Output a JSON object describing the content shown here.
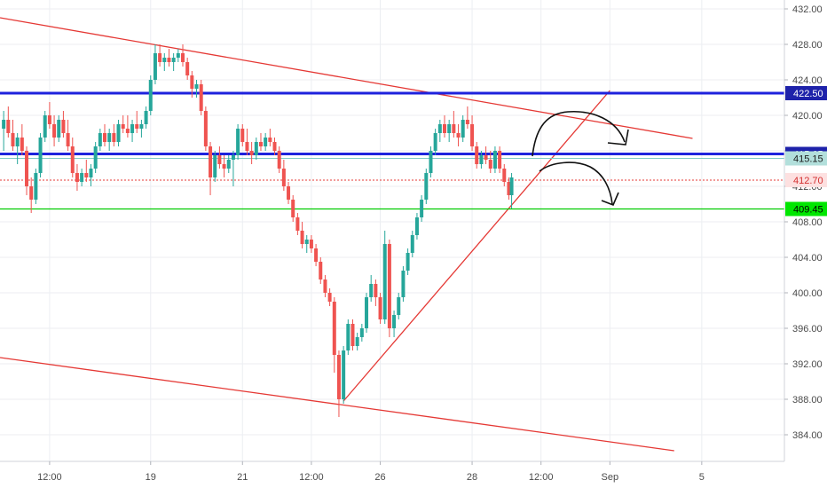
{
  "chart_data": {
    "type": "candlestick",
    "ylim": [
      381,
      433
    ],
    "y_ticks": [
      "432.00",
      "428.00",
      "424.00",
      "420.00",
      "416.00",
      "412.00",
      "408.00",
      "404.00",
      "400.00",
      "396.00",
      "392.00",
      "388.00",
      "384.00"
    ],
    "x_ticks": [
      {
        "label": "12:00",
        "t": 0.9
      },
      {
        "label": "19",
        "t": 2.0
      },
      {
        "label": "21",
        "t": 3.0
      },
      {
        "label": "12:00",
        "t": 3.75
      },
      {
        "label": "26",
        "t": 4.5
      },
      {
        "label": "28",
        "t": 5.5
      },
      {
        "label": "12:00",
        "t": 6.25
      },
      {
        "label": "Sep",
        "t": 7.0
      },
      {
        "label": "5",
        "t": 8.0
      }
    ],
    "x_range": [
      0.36,
      8.9
    ],
    "series_colors": {
      "up": "#26a69a",
      "down": "#ef5350"
    },
    "candles": [
      [
        0.4,
        418.5,
        420.5,
        416.0,
        419.5
      ],
      [
        0.45,
        419.5,
        421.0,
        417.5,
        418.0
      ],
      [
        0.5,
        418.0,
        419.5,
        416.0,
        416.5
      ],
      [
        0.55,
        416.5,
        418.0,
        414.5,
        417.5
      ],
      [
        0.6,
        417.5,
        419.0,
        415.5,
        416.0
      ],
      [
        0.65,
        416.0,
        416.5,
        411.0,
        412.0
      ],
      [
        0.7,
        412.0,
        413.0,
        409.0,
        410.5
      ],
      [
        0.75,
        410.5,
        414.0,
        410.0,
        413.5
      ],
      [
        0.8,
        413.5,
        418.0,
        413.0,
        417.5
      ],
      [
        0.85,
        417.5,
        420.5,
        417.0,
        420.0
      ],
      [
        0.9,
        420.0,
        421.5,
        418.5,
        419.0
      ],
      [
        0.95,
        419.0,
        420.0,
        416.5,
        417.5
      ],
      [
        1.0,
        417.5,
        420.0,
        417.0,
        419.5
      ],
      [
        1.05,
        419.5,
        420.5,
        417.5,
        418.0
      ],
      [
        1.1,
        418.0,
        419.5,
        416.0,
        416.5
      ],
      [
        1.15,
        416.5,
        417.5,
        413.0,
        413.5
      ],
      [
        1.2,
        413.5,
        414.5,
        411.5,
        412.5
      ],
      [
        1.25,
        412.5,
        414.0,
        412.0,
        413.5
      ],
      [
        1.3,
        413.5,
        415.0,
        412.5,
        413.0
      ],
      [
        1.35,
        413.0,
        414.5,
        412.0,
        414.0
      ],
      [
        1.4,
        414.0,
        417.0,
        413.5,
        416.5
      ],
      [
        1.45,
        416.5,
        418.5,
        416.0,
        418.0
      ],
      [
        1.5,
        418.0,
        419.0,
        416.5,
        417.0
      ],
      [
        1.55,
        417.0,
        418.5,
        416.0,
        418.0
      ],
      [
        1.6,
        418.0,
        419.0,
        416.5,
        417.0
      ],
      [
        1.65,
        417.0,
        419.5,
        416.5,
        419.0
      ],
      [
        1.7,
        419.0,
        420.0,
        418.0,
        418.5
      ],
      [
        1.75,
        418.5,
        420.0,
        417.5,
        418.0
      ],
      [
        1.8,
        418.0,
        419.5,
        417.0,
        419.0
      ],
      [
        1.85,
        419.0,
        420.5,
        418.0,
        418.5
      ],
      [
        1.9,
        418.5,
        419.5,
        417.5,
        419.0
      ],
      [
        1.95,
        419.0,
        421.0,
        418.5,
        420.5
      ],
      [
        2.0,
        420.5,
        424.5,
        420.0,
        424.0
      ],
      [
        2.05,
        424.0,
        428.0,
        423.5,
        427.0
      ],
      [
        2.1,
        427.0,
        428.0,
        425.5,
        426.0
      ],
      [
        2.15,
        426.0,
        427.0,
        425.0,
        426.5
      ],
      [
        2.2,
        426.5,
        427.5,
        425.5,
        426.0
      ],
      [
        2.25,
        426.0,
        427.0,
        425.0,
        426.5
      ],
      [
        2.3,
        426.5,
        427.5,
        426.0,
        427.0
      ],
      [
        2.35,
        427.0,
        428.0,
        425.5,
        426.0
      ],
      [
        2.4,
        426.0,
        426.5,
        424.0,
        424.5
      ],
      [
        2.45,
        424.5,
        425.0,
        422.0,
        423.0
      ],
      [
        2.5,
        423.0,
        424.0,
        422.0,
        423.5
      ],
      [
        2.55,
        423.5,
        424.0,
        420.0,
        420.5
      ],
      [
        2.6,
        420.5,
        421.0,
        416.0,
        416.5
      ],
      [
        2.65,
        416.5,
        417.0,
        411.0,
        413.0
      ],
      [
        2.7,
        413.0,
        416.0,
        412.5,
        415.5
      ],
      [
        2.75,
        415.5,
        416.5,
        414.0,
        414.5
      ],
      [
        2.8,
        414.5,
        415.5,
        413.0,
        414.0
      ],
      [
        2.85,
        414.0,
        415.5,
        413.5,
        415.0
      ],
      [
        2.9,
        415.0,
        416.0,
        412.0,
        415.5
      ],
      [
        2.95,
        415.5,
        419.0,
        415.0,
        418.5
      ],
      [
        3.0,
        418.5,
        419.0,
        416.5,
        417.0
      ],
      [
        3.05,
        417.0,
        418.5,
        415.5,
        416.0
      ],
      [
        3.1,
        416.0,
        417.0,
        414.5,
        415.5
      ],
      [
        3.15,
        415.5,
        417.5,
        415.0,
        417.0
      ],
      [
        3.2,
        417.0,
        418.0,
        416.0,
        416.5
      ],
      [
        3.25,
        416.5,
        418.0,
        416.0,
        417.5
      ],
      [
        3.3,
        417.5,
        418.5,
        416.5,
        417.0
      ],
      [
        3.35,
        417.0,
        417.5,
        415.5,
        416.0
      ],
      [
        3.4,
        416.0,
        416.5,
        413.5,
        414.0
      ],
      [
        3.45,
        414.0,
        415.0,
        411.5,
        412.0
      ],
      [
        3.5,
        412.0,
        412.5,
        410.0,
        410.5
      ],
      [
        3.55,
        410.5,
        411.0,
        408.0,
        408.5
      ],
      [
        3.6,
        408.5,
        409.0,
        406.5,
        407.0
      ],
      [
        3.65,
        407.0,
        408.0,
        405.0,
        405.5
      ],
      [
        3.7,
        405.5,
        406.5,
        404.5,
        406.0
      ],
      [
        3.75,
        406.0,
        406.5,
        404.5,
        405.0
      ],
      [
        3.8,
        405.0,
        405.5,
        403.0,
        403.5
      ],
      [
        3.85,
        403.5,
        404.0,
        401.0,
        401.5
      ],
      [
        3.9,
        401.5,
        402.0,
        399.5,
        400.0
      ],
      [
        3.95,
        400.0,
        400.5,
        398.5,
        399.0
      ],
      [
        4.0,
        399.0,
        399.5,
        391.0,
        393.0
      ],
      [
        4.05,
        393.0,
        393.5,
        386.0,
        388.0
      ],
      [
        4.1,
        388.0,
        394.0,
        387.5,
        393.5
      ],
      [
        4.15,
        393.5,
        397.0,
        393.0,
        396.5
      ],
      [
        4.2,
        396.5,
        397.0,
        393.5,
        394.0
      ],
      [
        4.25,
        394.0,
        395.5,
        393.5,
        395.0
      ],
      [
        4.3,
        395.0,
        396.5,
        394.5,
        396.0
      ],
      [
        4.35,
        396.0,
        400.0,
        395.5,
        399.5
      ],
      [
        4.4,
        399.5,
        402.0,
        399.0,
        401.0
      ],
      [
        4.45,
        401.0,
        401.5,
        398.5,
        399.5
      ],
      [
        4.5,
        399.5,
        400.0,
        396.5,
        397.0
      ],
      [
        4.55,
        397.0,
        407.0,
        396.5,
        405.5
      ],
      [
        4.6,
        405.5,
        406.0,
        395.0,
        396.0
      ],
      [
        4.65,
        396.0,
        398.0,
        395.0,
        397.5
      ],
      [
        4.7,
        397.5,
        400.0,
        397.0,
        399.5
      ],
      [
        4.75,
        399.5,
        403.0,
        399.0,
        402.5
      ],
      [
        4.8,
        402.5,
        405.0,
        402.0,
        404.5
      ],
      [
        4.85,
        404.5,
        407.0,
        404.0,
        406.5
      ],
      [
        4.9,
        406.5,
        409.0,
        406.0,
        408.5
      ],
      [
        4.95,
        408.5,
        411.0,
        408.0,
        410.5
      ],
      [
        5.0,
        410.5,
        414.0,
        410.0,
        413.5
      ],
      [
        5.05,
        413.5,
        416.5,
        413.0,
        416.0
      ],
      [
        5.1,
        416.0,
        418.5,
        415.5,
        418.0
      ],
      [
        5.15,
        418.0,
        419.5,
        417.0,
        419.0
      ],
      [
        5.2,
        419.0,
        420.0,
        417.5,
        418.0
      ],
      [
        5.25,
        418.0,
        419.5,
        417.0,
        419.0
      ],
      [
        5.3,
        419.0,
        420.5,
        417.5,
        418.0
      ],
      [
        5.35,
        418.0,
        419.0,
        416.5,
        417.5
      ],
      [
        5.4,
        417.5,
        420.0,
        417.0,
        419.5
      ],
      [
        5.45,
        419.5,
        421.0,
        418.5,
        419.0
      ],
      [
        5.5,
        419.0,
        420.0,
        416.0,
        416.5
      ],
      [
        5.55,
        416.5,
        417.0,
        414.0,
        414.5
      ],
      [
        5.6,
        414.5,
        416.0,
        414.0,
        415.5
      ],
      [
        5.65,
        415.5,
        416.5,
        414.5,
        415.0
      ],
      [
        5.7,
        415.0,
        416.0,
        413.5,
        414.0
      ],
      [
        5.75,
        414.0,
        416.5,
        413.5,
        416.0
      ],
      [
        5.8,
        416.0,
        416.5,
        413.5,
        414.0
      ],
      [
        5.85,
        414.0,
        414.5,
        412.0,
        412.5
      ],
      [
        5.9,
        412.5,
        413.0,
        410.5,
        411.0
      ],
      [
        5.93,
        411.0,
        413.5,
        409.5,
        413.0
      ]
    ],
    "price_tags": [
      {
        "label": "422.50",
        "value": 422.5,
        "bg": "#1e22aa",
        "fg": "#ffffff"
      },
      {
        "label": "415.65",
        "value": 415.65,
        "bg": "#1e22aa",
        "fg": "#ffffff"
      },
      {
        "label": "415.15",
        "value": 415.15,
        "bg": "#b2dfdb",
        "fg": "#1a1a1a"
      },
      {
        "label": "412.70",
        "value": 412.7,
        "bg": "#fde0e0",
        "fg": "#d32f2f"
      },
      {
        "label": "409.45",
        "value": 409.45,
        "bg": "#00e600",
        "fg": "#000000"
      }
    ],
    "horizontal_lines": [
      {
        "value": 422.5,
        "color": "#1e22dd",
        "width": 3
      },
      {
        "value": 415.65,
        "color": "#1e22dd",
        "width": 3
      },
      {
        "value": 415.15,
        "color": "#80cbc4",
        "width": 1,
        "dash": ""
      },
      {
        "value": 412.7,
        "color": "#e53935",
        "width": 1,
        "dash": "2,2"
      },
      {
        "value": 409.45,
        "color": "#00cc00",
        "width": 1.2
      }
    ],
    "trend_lines": [
      {
        "t1": 0.36,
        "p1": 431.0,
        "t2": 7.9,
        "p2": 417.4,
        "color": "#e53935"
      },
      {
        "t1": 0.36,
        "p1": 392.7,
        "t2": 7.7,
        "p2": 382.2,
        "color": "#e53935"
      },
      {
        "t1": 4.1,
        "p1": 387.8,
        "t2": 7.0,
        "p2": 422.8,
        "color": "#e53935"
      }
    ],
    "colors": {
      "grid": "#eceef2",
      "axis_text": "#4a4a4a",
      "drawing": "#111111"
    }
  }
}
